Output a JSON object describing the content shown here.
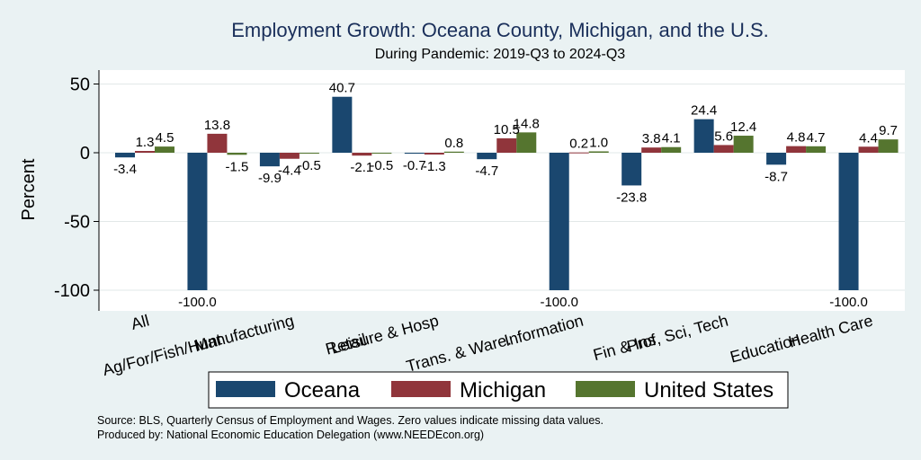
{
  "chart_data": {
    "type": "bar",
    "title": "Employment Growth: Oceana County, Michigan, and the U.S.",
    "subtitle": "During Pandemic: 2019-Q3 to 2024-Q3",
    "ylabel": "Percent",
    "ylim": [
      -110,
      55
    ],
    "yticks": [
      50,
      0,
      -50,
      -100
    ],
    "grid": true,
    "legend_position": "bottom",
    "categories": [
      "All",
      "Ag/For/Fish/Hunt",
      "Manufacturing",
      "Retail",
      "Leisure & Hosp",
      "Trans. & Ware.",
      "Information",
      "Fin & Ins",
      "Prof, Sci, Tech",
      "Education",
      "Health Care"
    ],
    "series": [
      {
        "name": "Oceana",
        "color": "#1a476f",
        "values": [
          -3.4,
          -100.0,
          -9.9,
          40.7,
          -0.7,
          -4.7,
          -100.0,
          -23.8,
          24.4,
          -8.7,
          -100.0
        ],
        "labels": [
          "-3.4",
          "-100.0",
          "-9.9",
          "40.7",
          "-0.7",
          "-4.7",
          "-100.0",
          "-23.8",
          "24.4",
          "-8.7",
          "-100.0"
        ]
      },
      {
        "name": "Michigan",
        "color": "#90353b",
        "values": [
          1.3,
          13.8,
          -4.4,
          -2.1,
          -1.3,
          10.5,
          0.2,
          3.8,
          5.6,
          4.8,
          4.4
        ],
        "labels": [
          "1.3",
          "13.8",
          "-4.4",
          "-2.1",
          "-1.3",
          "10.5",
          "0.2",
          "3.8",
          "5.6",
          "4.8",
          "4.4"
        ]
      },
      {
        "name": "United States",
        "color": "#55752f",
        "values": [
          4.5,
          -1.5,
          -0.5,
          -0.5,
          0.8,
          14.8,
          1.0,
          4.1,
          12.4,
          4.7,
          9.7
        ],
        "labels": [
          "4.5",
          "-1.5",
          "-0.5",
          "-0.5",
          "0.8",
          "14.8",
          "1.0",
          "4.1",
          "12.4",
          "4.7",
          "9.7"
        ]
      }
    ],
    "notes": [
      "Source: BLS, Quarterly Census of Employment and Wages. Zero values indicate missing data values.",
      "Produced by: National Economic Education Delegation (www.NEEDEcon.org)"
    ]
  }
}
